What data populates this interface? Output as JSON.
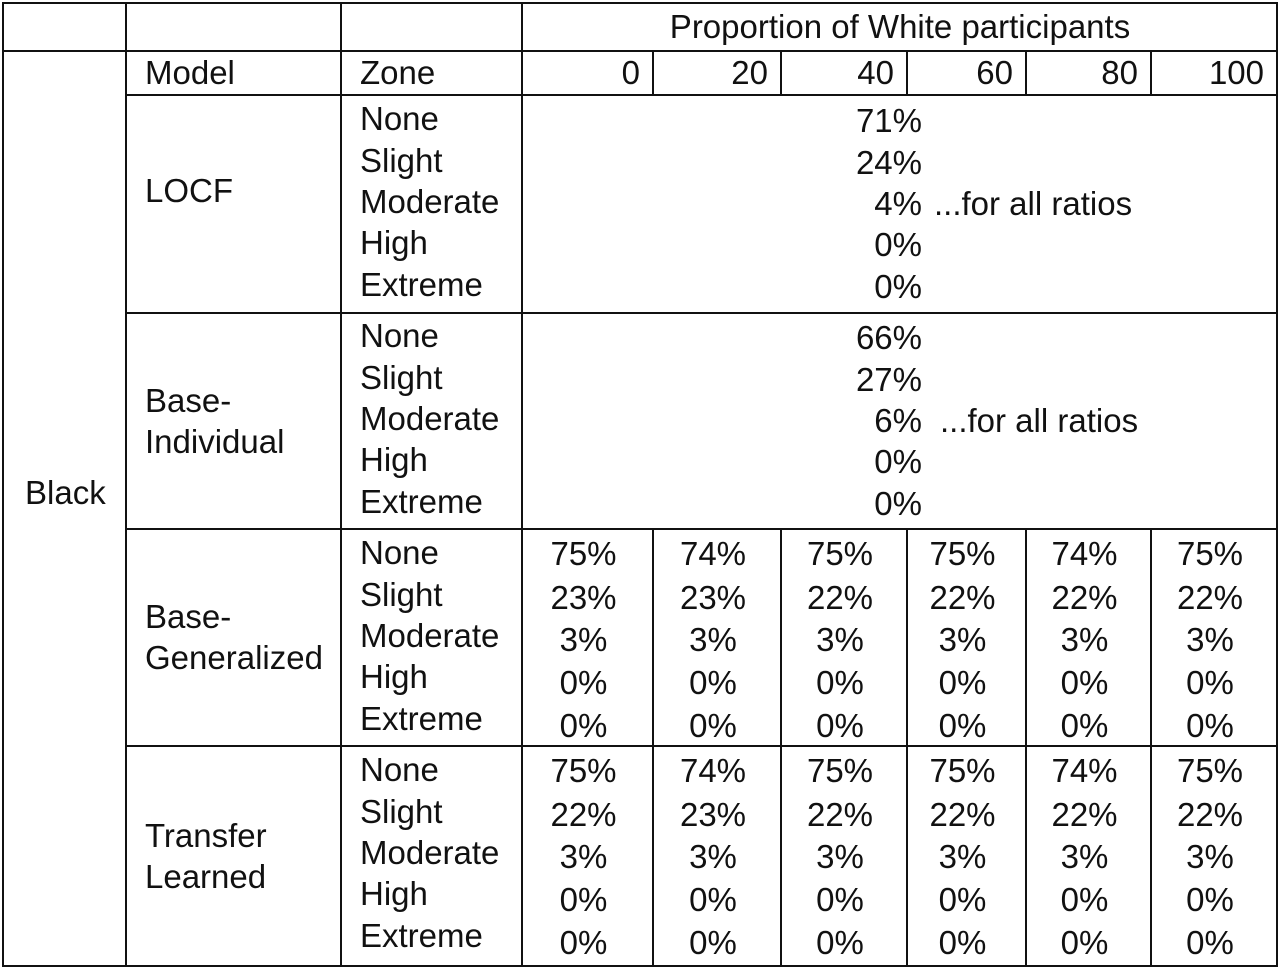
{
  "header": {
    "proportion": "Proportion of White participants"
  },
  "columns": {
    "model": "Model",
    "zone": "Zone"
  },
  "group": "Black",
  "proportions": [
    "0",
    "20",
    "40",
    "60",
    "80",
    "100"
  ],
  "zones": [
    "None",
    "Slight",
    "Moderate",
    "High",
    "Extreme"
  ],
  "all_ratios_note": "...for all ratios",
  "models": [
    {
      "name_lines": [
        "LOCF"
      ],
      "all_ratios": true,
      "values": [
        "71%",
        "24%",
        "4%",
        "0%",
        "0%"
      ]
    },
    {
      "name_lines": [
        "Base-",
        "Individual"
      ],
      "all_ratios": true,
      "values": [
        "66%",
        "27%",
        "6%",
        "0%",
        "0%"
      ]
    },
    {
      "name_lines": [
        "Base-",
        "Generalized"
      ],
      "all_ratios": false,
      "values": [
        [
          "75%",
          "23%",
          "3%",
          "0%",
          "0%"
        ],
        [
          "74%",
          "23%",
          "3%",
          "0%",
          "0%"
        ],
        [
          "75%",
          "22%",
          "3%",
          "0%",
          "0%"
        ],
        [
          "75%",
          "22%",
          "3%",
          "0%",
          "0%"
        ],
        [
          "74%",
          "22%",
          "3%",
          "0%",
          "0%"
        ],
        [
          "75%",
          "22%",
          "3%",
          "0%",
          "0%"
        ]
      ]
    },
    {
      "name_lines": [
        "Transfer",
        "Learned"
      ],
      "all_ratios": false,
      "values": [
        [
          "75%",
          "22%",
          "3%",
          "0%",
          "0%"
        ],
        [
          "74%",
          "23%",
          "3%",
          "0%",
          "0%"
        ],
        [
          "75%",
          "22%",
          "3%",
          "0%",
          "0%"
        ],
        [
          "75%",
          "22%",
          "3%",
          "0%",
          "0%"
        ],
        [
          "74%",
          "22%",
          "3%",
          "0%",
          "0%"
        ],
        [
          "75%",
          "22%",
          "3%",
          "0%",
          "0%"
        ]
      ]
    }
  ]
}
